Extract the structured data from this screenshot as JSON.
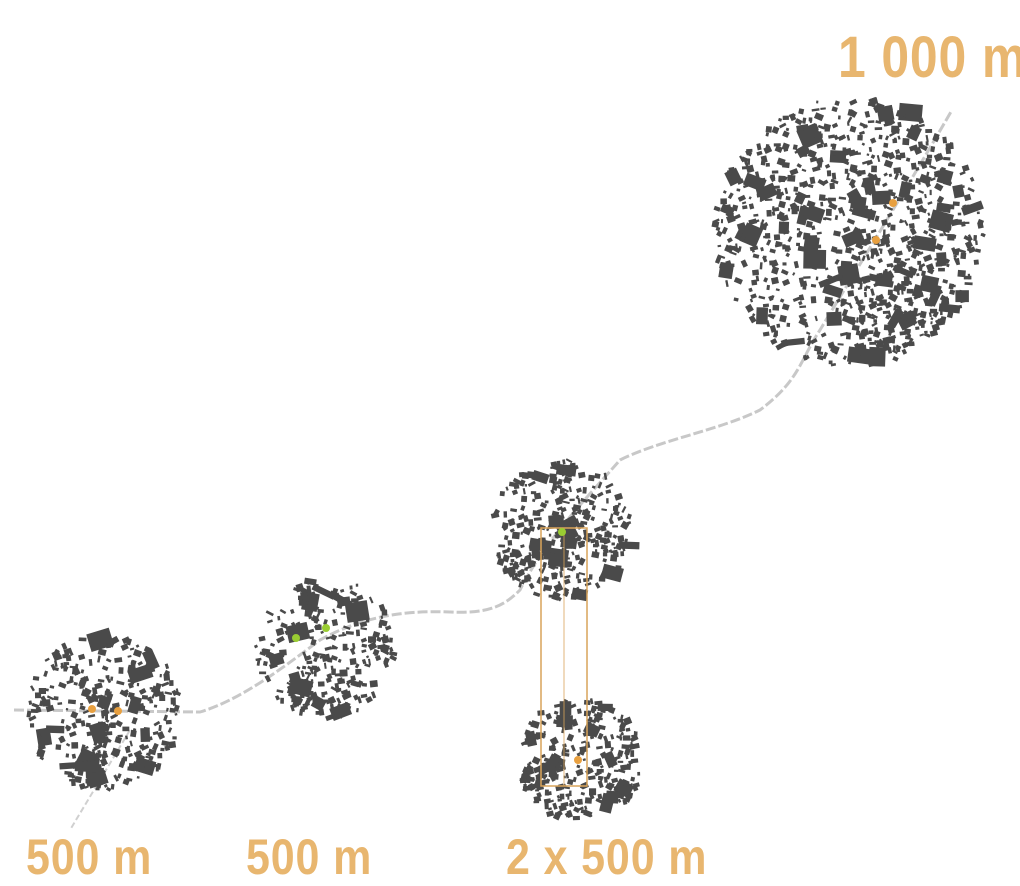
{
  "labels": {
    "radius_1000": "1 000 m",
    "radius_500_a": "500 m",
    "radius_500_b": "500 m",
    "radius_2x500": "2 x 500 m"
  },
  "colors": {
    "accent": "#e8b66f",
    "building": "#4a4a4a",
    "rail": "#c8c8c8",
    "station_orange": "#e8a040",
    "station_green": "#9acd32",
    "corridor": "#d9a45a"
  }
}
